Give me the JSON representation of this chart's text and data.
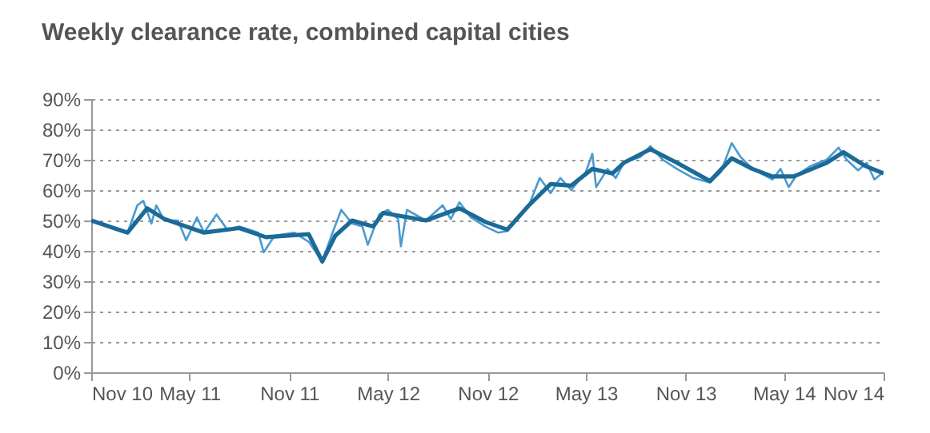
{
  "chart_data": {
    "type": "line",
    "title": "Weekly clearance rate, combined capital cities",
    "xlim": [
      "2010-11-01",
      "2014-11-01"
    ],
    "xticks": [
      {
        "value": "2010-11-01",
        "label": "Nov 10"
      },
      {
        "value": "2011-05-01",
        "label": "May 11"
      },
      {
        "value": "2011-11-01",
        "label": "Nov 11"
      },
      {
        "value": "2012-05-01",
        "label": "May 12"
      },
      {
        "value": "2012-11-01",
        "label": "Nov 12"
      },
      {
        "value": "2013-05-01",
        "label": "May 13"
      },
      {
        "value": "2013-11-01",
        "label": "Nov 13"
      },
      {
        "value": "2014-05-01",
        "label": "May 14"
      },
      {
        "value": "2014-11-01",
        "label": "Nov 14"
      }
    ],
    "ylim": [
      0,
      90
    ],
    "yticks": [
      {
        "value": 0,
        "label": "0%"
      },
      {
        "value": 10,
        "label": "10%"
      },
      {
        "value": 20,
        "label": "20%"
      },
      {
        "value": 30,
        "label": "30%"
      },
      {
        "value": 40,
        "label": "40%"
      },
      {
        "value": 50,
        "label": "50%"
      },
      {
        "value": 60,
        "label": "60%"
      },
      {
        "value": 70,
        "label": "70%"
      },
      {
        "value": 80,
        "label": "80%"
      },
      {
        "value": 90,
        "label": "90%"
      }
    ],
    "grid": "y",
    "line_style": "solid",
    "series": [
      {
        "color": "#4a9bd0",
        "x": [
          "2010-11-01",
          "2011-01-07",
          "2011-01-25",
          "2011-02-05",
          "2011-02-20",
          "2011-03-01",
          "2011-03-16",
          "2011-04-10",
          "2011-04-25",
          "2011-05-15",
          "2011-05-28",
          "2011-06-20",
          "2011-07-10",
          "2011-08-01",
          "2011-09-05",
          "2011-09-15",
          "2011-10-05",
          "2011-11-10",
          "2011-12-07",
          "2012-01-01",
          "2012-01-20",
          "2012-02-05",
          "2012-02-25",
          "2012-03-15",
          "2012-03-25",
          "2012-04-15",
          "2012-05-01",
          "2012-05-20",
          "2012-05-25",
          "2012-06-05",
          "2012-07-10",
          "2012-08-10",
          "2012-08-25",
          "2012-09-10",
          "2012-10-01",
          "2012-10-28",
          "2012-11-20",
          "2012-12-07",
          "2013-01-16",
          "2013-02-05",
          "2013-02-25",
          "2013-03-15",
          "2013-04-04",
          "2013-05-01",
          "2013-05-13",
          "2013-05-20",
          "2013-06-10",
          "2013-06-25",
          "2013-07-10",
          "2013-08-10",
          "2013-08-28",
          "2013-09-20",
          "2013-10-16",
          "2013-11-15",
          "2013-12-16",
          "2014-01-05",
          "2014-01-25",
          "2014-02-10",
          "2014-03-04",
          "2014-04-10",
          "2014-04-25",
          "2014-05-10",
          "2014-05-25",
          "2014-06-20",
          "2014-07-19",
          "2014-08-10",
          "2014-08-25",
          "2014-09-15",
          "2014-10-01",
          "2014-10-15",
          "2014-11-01"
        ],
        "values": [
          50,
          46,
          55,
          56.5,
          49,
          55,
          50,
          50,
          43.5,
          51,
          46,
          52,
          47,
          48,
          46,
          39.5,
          45,
          46,
          43,
          36.5,
          46,
          53.5,
          49,
          48,
          42,
          52,
          53.5,
          50.5,
          41.5,
          53.5,
          50,
          55,
          50.5,
          56,
          51,
          48,
          46,
          46.5,
          55,
          64,
          59,
          64,
          60,
          66,
          72,
          61,
          67,
          64,
          69,
          71,
          74.5,
          70,
          67,
          64,
          62.5,
          66,
          75.5,
          71,
          67,
          63.5,
          67,
          61,
          65,
          68,
          70,
          74,
          70,
          66.5,
          69,
          63.5,
          66
        ]
      },
      {
        "color": "#1b6a98",
        "x": [
          "2010-11-01",
          "2011-01-07",
          "2011-02-12",
          "2011-03-16",
          "2011-05-28",
          "2011-08-01",
          "2011-09-19",
          "2011-12-07",
          "2012-01-01",
          "2012-01-25",
          "2012-02-25",
          "2012-04-04",
          "2012-04-22",
          "2012-07-10",
          "2012-09-10",
          "2012-10-28",
          "2012-12-07",
          "2013-01-16",
          "2013-02-25",
          "2013-04-04",
          "2013-05-13",
          "2013-06-19",
          "2013-07-10",
          "2013-08-28",
          "2013-10-16",
          "2013-12-16",
          "2014-01-25",
          "2014-03-04",
          "2014-04-10",
          "2014-05-19",
          "2014-07-19",
          "2014-08-19",
          "2014-09-28",
          "2014-11-01"
        ],
        "values": [
          50,
          46,
          54,
          50.5,
          46,
          47.5,
          44.5,
          45.5,
          36.5,
          45,
          50,
          48,
          52.5,
          50,
          54,
          49.5,
          47,
          55,
          62,
          61.5,
          67,
          65.5,
          69,
          73.5,
          69,
          63,
          70.5,
          67,
          64.5,
          64.5,
          69,
          72.5,
          68,
          65.5
        ]
      }
    ]
  }
}
